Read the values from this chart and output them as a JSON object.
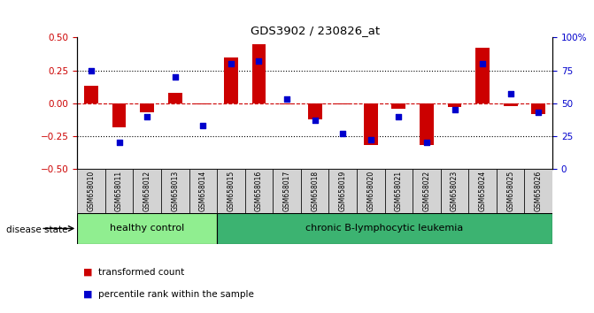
{
  "title": "GDS3902 / 230826_at",
  "samples": [
    "GSM658010",
    "GSM658011",
    "GSM658012",
    "GSM658013",
    "GSM658014",
    "GSM658015",
    "GSM658016",
    "GSM658017",
    "GSM658018",
    "GSM658019",
    "GSM658020",
    "GSM658021",
    "GSM658022",
    "GSM658023",
    "GSM658024",
    "GSM658025",
    "GSM658026"
  ],
  "transformed_count": [
    0.13,
    -0.18,
    -0.07,
    0.08,
    -0.01,
    0.35,
    0.45,
    -0.01,
    -0.12,
    -0.01,
    -0.32,
    -0.04,
    -0.32,
    -0.03,
    0.42,
    -0.02,
    -0.08
  ],
  "percentile_rank": [
    75,
    20,
    40,
    70,
    33,
    80,
    82,
    53,
    37,
    27,
    22,
    40,
    20,
    45,
    80,
    57,
    43
  ],
  "groups": [
    {
      "label": "healthy control",
      "start": 0,
      "end": 5,
      "color": "#90EE90"
    },
    {
      "label": "chronic B-lymphocytic leukemia",
      "start": 5,
      "end": 17,
      "color": "#3CB371"
    }
  ],
  "ylim_left": [
    -0.5,
    0.5
  ],
  "ylim_right": [
    0,
    100
  ],
  "yticks_left": [
    -0.5,
    -0.25,
    0.0,
    0.25,
    0.5
  ],
  "yticks_right": [
    0,
    25,
    50,
    75,
    100
  ],
  "bar_color": "#CC0000",
  "dot_color": "#0000CC",
  "hline_color": "#CC0000",
  "dotted_color": "black",
  "background_color": "#FFFFFF",
  "legend_bar_label": "transformed count",
  "legend_dot_label": "percentile rank within the sample",
  "disease_state_label": "disease state",
  "ylabel_left_color": "#CC0000",
  "ylabel_right_color": "#0000CC",
  "sample_box_color": "#D3D3D3",
  "bar_width": 0.5,
  "dot_size": 16
}
